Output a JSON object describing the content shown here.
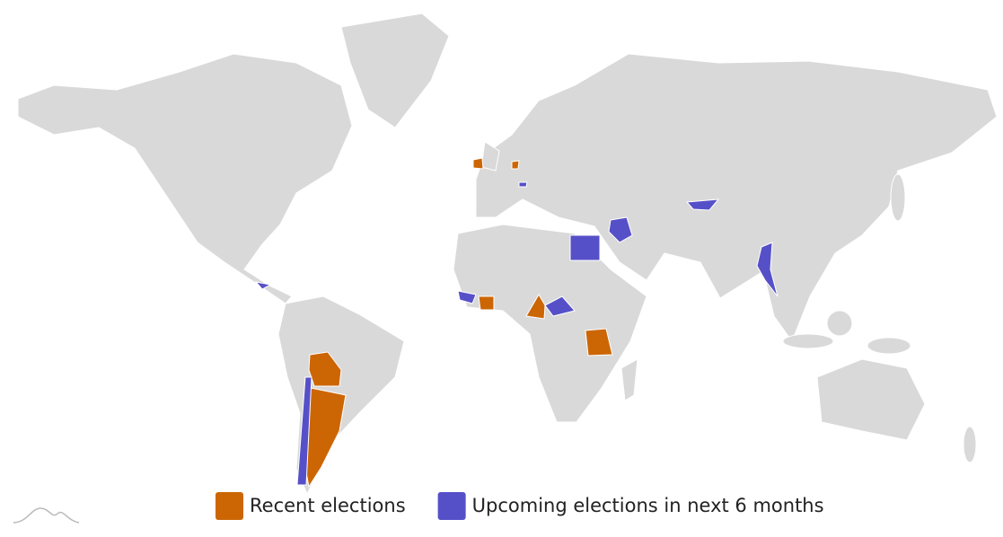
{
  "legend": {
    "items": [
      {
        "label": "Recent elections",
        "color": "#cc6605"
      },
      {
        "label": "Upcoming elections in next 6 months",
        "color": "#5650c8"
      }
    ]
  }
}
